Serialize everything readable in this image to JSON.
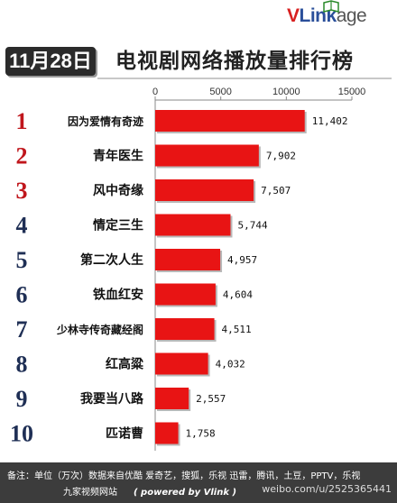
{
  "brand": {
    "logo_v": "V",
    "logo_link": "Link",
    "logo_age": "age"
  },
  "header": {
    "date": "11月28日",
    "title": "电视剧网络播放量排行榜"
  },
  "chart_data": {
    "type": "bar",
    "orientation": "horizontal",
    "title": "电视剧网络播放量排行榜",
    "xlabel": "",
    "ylabel": "",
    "xlim": [
      0,
      15000
    ],
    "xticks": [
      0,
      5000,
      10000,
      15000
    ],
    "xtick_labels": [
      "0",
      "5000",
      "10000",
      "15000"
    ],
    "axis_position": "top",
    "grid": false,
    "ranks": [
      "1",
      "2",
      "3",
      "4",
      "5",
      "6",
      "7",
      "8",
      "9",
      "10"
    ],
    "categories": [
      "因为爱情有奇迹",
      "青年医生",
      "风中奇缘",
      "情定三生",
      "第二次人生",
      "铁血红安",
      "少林寺传奇藏经阁",
      "红高粱",
      "我要当八路",
      "匹诺曹"
    ],
    "values": [
      11402,
      7902,
      7507,
      5744,
      4957,
      4604,
      4511,
      4032,
      2557,
      1758
    ],
    "value_labels": [
      "11,402",
      "7,902",
      "7,507",
      "5,744",
      "4,957",
      "4,604",
      "4,511",
      "4,032",
      "2,557",
      "1,758"
    ],
    "colors": {
      "bar": "#e81414",
      "rank_top3": "#c0161c",
      "rank_other": "#1f2f55"
    }
  },
  "footer": {
    "line1": "备注：单位（万次）数据来自优酷 爱奇艺，搜狐，乐视  迅雷，腾讯，土豆，PPTV，乐视",
    "line2": "九家视频网站",
    "powered": "( powered by Vlink )"
  },
  "watermark": "weibo.com/u/2525365441"
}
